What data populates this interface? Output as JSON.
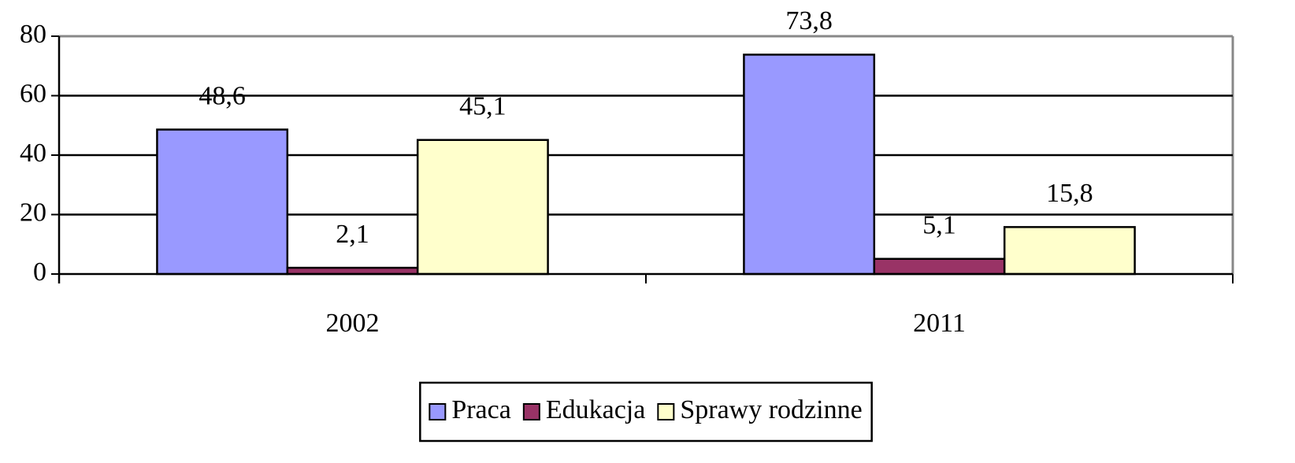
{
  "chart_data": {
    "type": "bar",
    "categories": [
      "2002",
      "2011"
    ],
    "series": [
      {
        "name": "Praca",
        "color": "#9999ff",
        "values": [
          48.6,
          73.8
        ],
        "value_labels": [
          "48,6",
          "73,8"
        ]
      },
      {
        "name": "Edukacja",
        "color": "#993366",
        "values": [
          2.1,
          5.1
        ],
        "value_labels": [
          "2,1",
          "5,1"
        ]
      },
      {
        "name": "Sprawy rodzinne",
        "color": "#ffffcc",
        "values": [
          45.1,
          15.8
        ],
        "value_labels": [
          "45,1",
          "15,8"
        ]
      }
    ],
    "ylim": [
      0,
      80
    ],
    "yticks": [
      0,
      20,
      40,
      60,
      80
    ],
    "grid": true,
    "legend": "bottom"
  }
}
